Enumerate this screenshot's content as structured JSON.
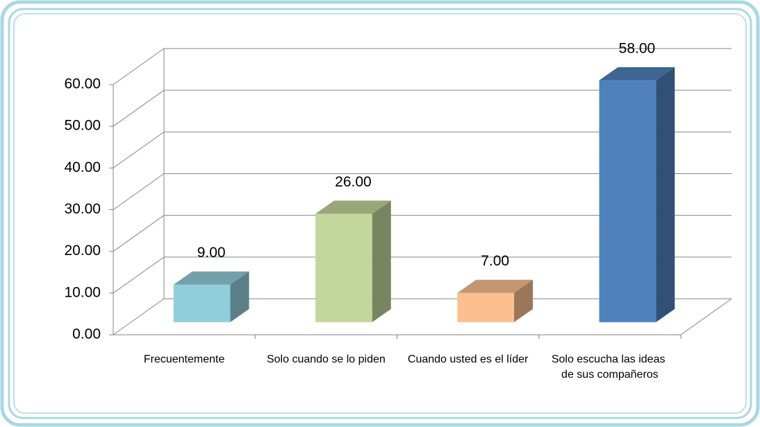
{
  "chart_data": {
    "type": "bar3d",
    "categories": [
      "Frecuentemente",
      "Solo cuando se lo piden",
      "Cuando usted es el líder",
      "Solo escucha las ideas de sus compañeros"
    ],
    "values": [
      9,
      26,
      7,
      58
    ],
    "value_labels": [
      "9.00",
      "26.00",
      "7.00",
      "58.00"
    ],
    "colors": [
      "#92cddc",
      "#c3d69b",
      "#fac090",
      "#4f81bd"
    ],
    "ylim": [
      0,
      60
    ],
    "yticks": [
      {
        "value": 0,
        "label": "0.00"
      },
      {
        "value": 10,
        "label": "10.00"
      },
      {
        "value": 20,
        "label": "20.00"
      },
      {
        "value": 30,
        "label": "30.00"
      },
      {
        "value": 40,
        "label": "40.00"
      },
      {
        "value": 50,
        "label": "50.00"
      },
      {
        "value": 60,
        "label": "60.00"
      }
    ],
    "grid": true
  }
}
